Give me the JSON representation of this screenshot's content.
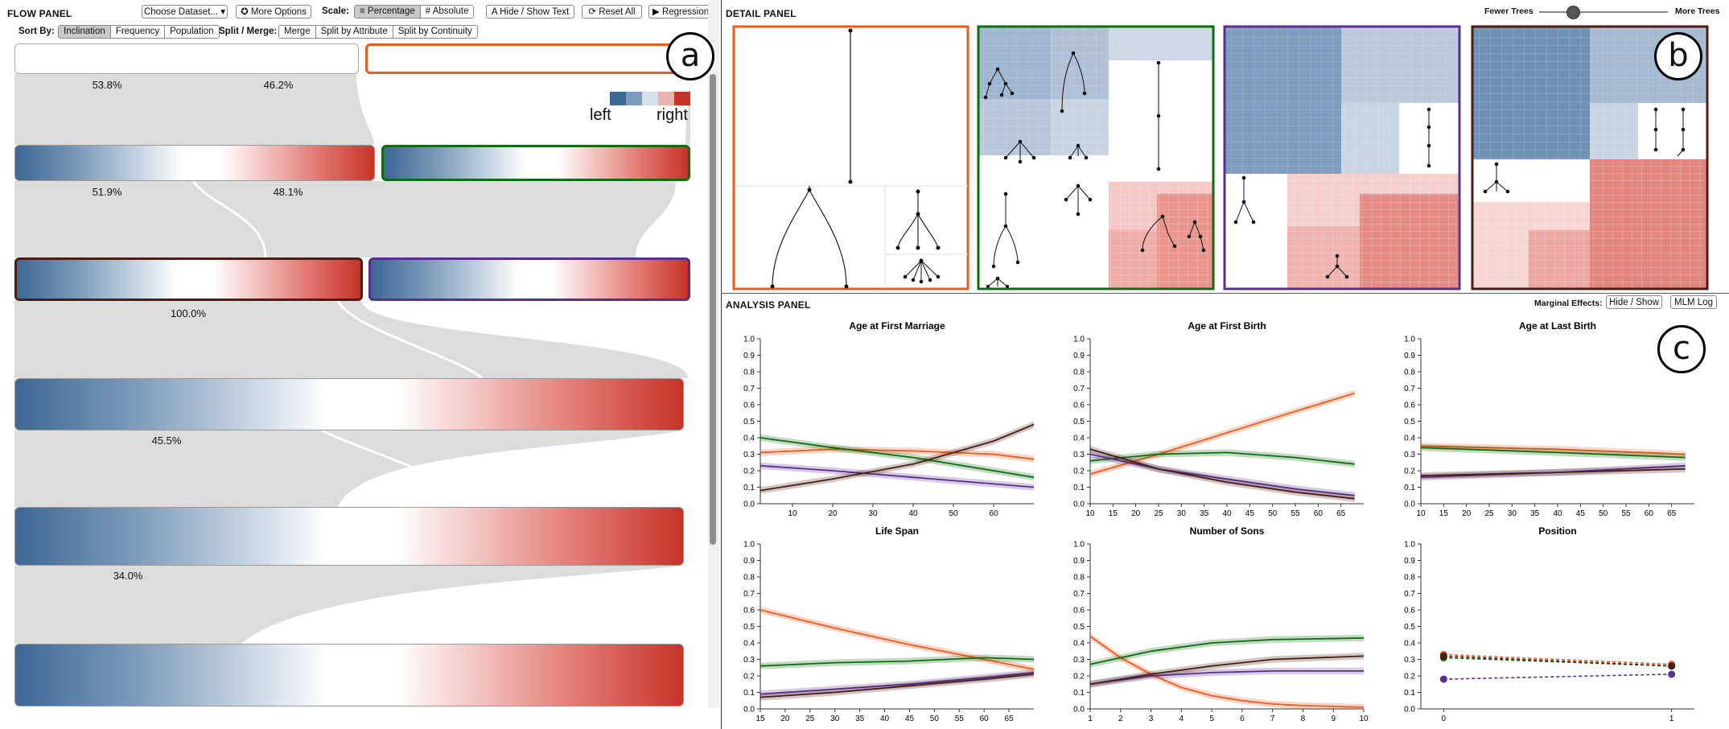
{
  "flow_panel": {
    "title": "FLOW PANEL",
    "choose_dataset": "Choose Dataset...",
    "more_options": "More Options",
    "scale_label": "Scale:",
    "scale_options": [
      "Percentage",
      "Absolute"
    ],
    "hide_show_text": "Hide / Show Text",
    "reset_all": "Reset All",
    "regression": "Regression",
    "sort_by_label": "Sort By:",
    "sort_options": [
      "Inclination",
      "Frequency",
      "Population"
    ],
    "split_merge_label": "Split / Merge:",
    "split_options": [
      "Merge",
      "Split by Attribute",
      "Split by Continuity"
    ],
    "legend": {
      "left": "left",
      "right": "right"
    },
    "percentages": [
      "53.8%",
      "46.2%",
      "51.9%",
      "48.1%",
      "100.0%",
      "45.5%",
      "34.0%"
    ],
    "badge": "a",
    "colors": {
      "left": "#3c6896",
      "right": "#c63328",
      "orange": "#ef5a1e",
      "green": "#116b11",
      "purple": "#5a2e91",
      "brown": "#4a1e14"
    }
  },
  "detail_panel": {
    "title": "DETAIL PANEL",
    "fewer_trees": "Fewer Trees",
    "more_trees": "More Trees",
    "slider_level": 0.28,
    "badge": "b"
  },
  "analysis_panel": {
    "title": "ANALYSIS PANEL",
    "marginal_effects_label": "Marginal Effects:",
    "hide_show": "Hide / Show",
    "mlm_log": "MLM Log",
    "badge": "c"
  },
  "chart_data": [
    {
      "type": "line",
      "title": "Age at First Marriage",
      "ylim": [
        0,
        1
      ],
      "xlim": [
        2,
        70
      ],
      "xticks": [
        10,
        20,
        30,
        40,
        50,
        60
      ],
      "series": [
        {
          "color": "#ef5a1e",
          "points": [
            [
              2,
              0.31
            ],
            [
              20,
              0.33
            ],
            [
              40,
              0.32
            ],
            [
              60,
              0.3
            ],
            [
              70,
              0.27
            ]
          ]
        },
        {
          "color": "#116b11",
          "points": [
            [
              2,
              0.4
            ],
            [
              20,
              0.34
            ],
            [
              40,
              0.28
            ],
            [
              60,
              0.2
            ],
            [
              70,
              0.16
            ]
          ]
        },
        {
          "color": "#5a2e91",
          "points": [
            [
              2,
              0.23
            ],
            [
              20,
              0.2
            ],
            [
              40,
              0.16
            ],
            [
              60,
              0.12
            ],
            [
              70,
              0.1
            ]
          ]
        },
        {
          "color": "#4a1e14",
          "points": [
            [
              2,
              0.08
            ],
            [
              20,
              0.15
            ],
            [
              40,
              0.24
            ],
            [
              60,
              0.38
            ],
            [
              70,
              0.48
            ]
          ]
        }
      ]
    },
    {
      "type": "line",
      "title": "Age at First Birth",
      "ylim": [
        0,
        1
      ],
      "xlim": [
        10,
        70
      ],
      "xticks": [
        10,
        15,
        20,
        25,
        30,
        35,
        40,
        45,
        50,
        55,
        60,
        65
      ],
      "series": [
        {
          "color": "#ef5a1e",
          "points": [
            [
              10,
              0.18
            ],
            [
              25,
              0.3
            ],
            [
              40,
              0.43
            ],
            [
              55,
              0.56
            ],
            [
              68,
              0.67
            ]
          ]
        },
        {
          "color": "#116b11",
          "points": [
            [
              10,
              0.26
            ],
            [
              25,
              0.3
            ],
            [
              40,
              0.31
            ],
            [
              55,
              0.28
            ],
            [
              68,
              0.24
            ]
          ]
        },
        {
          "color": "#5a2e91",
          "points": [
            [
              10,
              0.3
            ],
            [
              25,
              0.21
            ],
            [
              40,
              0.15
            ],
            [
              55,
              0.09
            ],
            [
              68,
              0.05
            ]
          ]
        },
        {
          "color": "#4a1e14",
          "points": [
            [
              10,
              0.33
            ],
            [
              25,
              0.21
            ],
            [
              40,
              0.13
            ],
            [
              55,
              0.07
            ],
            [
              68,
              0.03
            ]
          ]
        }
      ]
    },
    {
      "type": "line",
      "title": "Age at Last Birth",
      "ylim": [
        0,
        1
      ],
      "xlim": [
        10,
        70
      ],
      "xticks": [
        10,
        15,
        20,
        25,
        30,
        35,
        40,
        45,
        50,
        55,
        60,
        65
      ],
      "series": [
        {
          "color": "#ef5a1e",
          "points": [
            [
              10,
              0.35
            ],
            [
              40,
              0.33
            ],
            [
              68,
              0.3
            ]
          ]
        },
        {
          "color": "#116b11",
          "points": [
            [
              10,
              0.34
            ],
            [
              40,
              0.31
            ],
            [
              68,
              0.28
            ]
          ]
        },
        {
          "color": "#5a2e91",
          "points": [
            [
              10,
              0.16
            ],
            [
              40,
              0.19
            ],
            [
              68,
              0.23
            ]
          ]
        },
        {
          "color": "#4a1e14",
          "points": [
            [
              10,
              0.17
            ],
            [
              40,
              0.19
            ],
            [
              68,
              0.21
            ]
          ]
        }
      ]
    },
    {
      "type": "line",
      "title": "Life Span",
      "ylim": [
        0,
        1
      ],
      "xlim": [
        15,
        70
      ],
      "xticks": [
        15,
        20,
        25,
        30,
        35,
        40,
        45,
        50,
        55,
        60,
        65
      ],
      "series": [
        {
          "color": "#ef5a1e",
          "points": [
            [
              15,
              0.6
            ],
            [
              30,
              0.49
            ],
            [
              45,
              0.39
            ],
            [
              60,
              0.3
            ],
            [
              70,
              0.24
            ]
          ]
        },
        {
          "color": "#116b11",
          "points": [
            [
              15,
              0.26
            ],
            [
              30,
              0.28
            ],
            [
              45,
              0.29
            ],
            [
              60,
              0.31
            ],
            [
              70,
              0.3
            ]
          ]
        },
        {
          "color": "#5a2e91",
          "points": [
            [
              15,
              0.09
            ],
            [
              30,
              0.12
            ],
            [
              45,
              0.15
            ],
            [
              60,
              0.19
            ],
            [
              70,
              0.22
            ]
          ]
        },
        {
          "color": "#4a1e14",
          "points": [
            [
              15,
              0.07
            ],
            [
              30,
              0.1
            ],
            [
              45,
              0.14
            ],
            [
              60,
              0.18
            ],
            [
              70,
              0.21
            ]
          ]
        }
      ]
    },
    {
      "type": "line",
      "title": "Number of Sons",
      "ylim": [
        0,
        1
      ],
      "xlim": [
        1,
        10
      ],
      "xticks": [
        1,
        2,
        3,
        4,
        5,
        6,
        7,
        8,
        9,
        10
      ],
      "series": [
        {
          "color": "#ef5a1e",
          "points": [
            [
              1,
              0.44
            ],
            [
              2,
              0.31
            ],
            [
              3,
              0.21
            ],
            [
              4,
              0.13
            ],
            [
              5,
              0.08
            ],
            [
              6,
              0.05
            ],
            [
              7,
              0.03
            ],
            [
              8,
              0.02
            ],
            [
              10,
              0.01
            ]
          ]
        },
        {
          "color": "#116b11",
          "points": [
            [
              1,
              0.27
            ],
            [
              3,
              0.35
            ],
            [
              5,
              0.4
            ],
            [
              7,
              0.42
            ],
            [
              10,
              0.43
            ]
          ]
        },
        {
          "color": "#5a2e91",
          "points": [
            [
              1,
              0.15
            ],
            [
              3,
              0.2
            ],
            [
              5,
              0.22
            ],
            [
              7,
              0.23
            ],
            [
              10,
              0.23
            ]
          ]
        },
        {
          "color": "#4a1e14",
          "points": [
            [
              1,
              0.15
            ],
            [
              3,
              0.21
            ],
            [
              5,
              0.26
            ],
            [
              7,
              0.3
            ],
            [
              10,
              0.32
            ]
          ]
        }
      ]
    },
    {
      "type": "scatter",
      "title": "Position",
      "ylim": [
        0,
        1
      ],
      "xlim": [
        -0.1,
        1.1
      ],
      "xticks": [
        0,
        1
      ],
      "dashed": true,
      "series": [
        {
          "color": "#ef5a1e",
          "points": [
            [
              0,
              0.33
            ],
            [
              1,
              0.27
            ]
          ]
        },
        {
          "color": "#116b11",
          "points": [
            [
              0,
              0.31
            ],
            [
              1,
              0.26
            ]
          ]
        },
        {
          "color": "#4a1e14",
          "points": [
            [
              0,
              0.32
            ],
            [
              1,
              0.26
            ]
          ]
        },
        {
          "color": "#5a2e91",
          "points": [
            [
              0,
              0.18
            ],
            [
              1,
              0.21
            ]
          ]
        }
      ]
    }
  ]
}
